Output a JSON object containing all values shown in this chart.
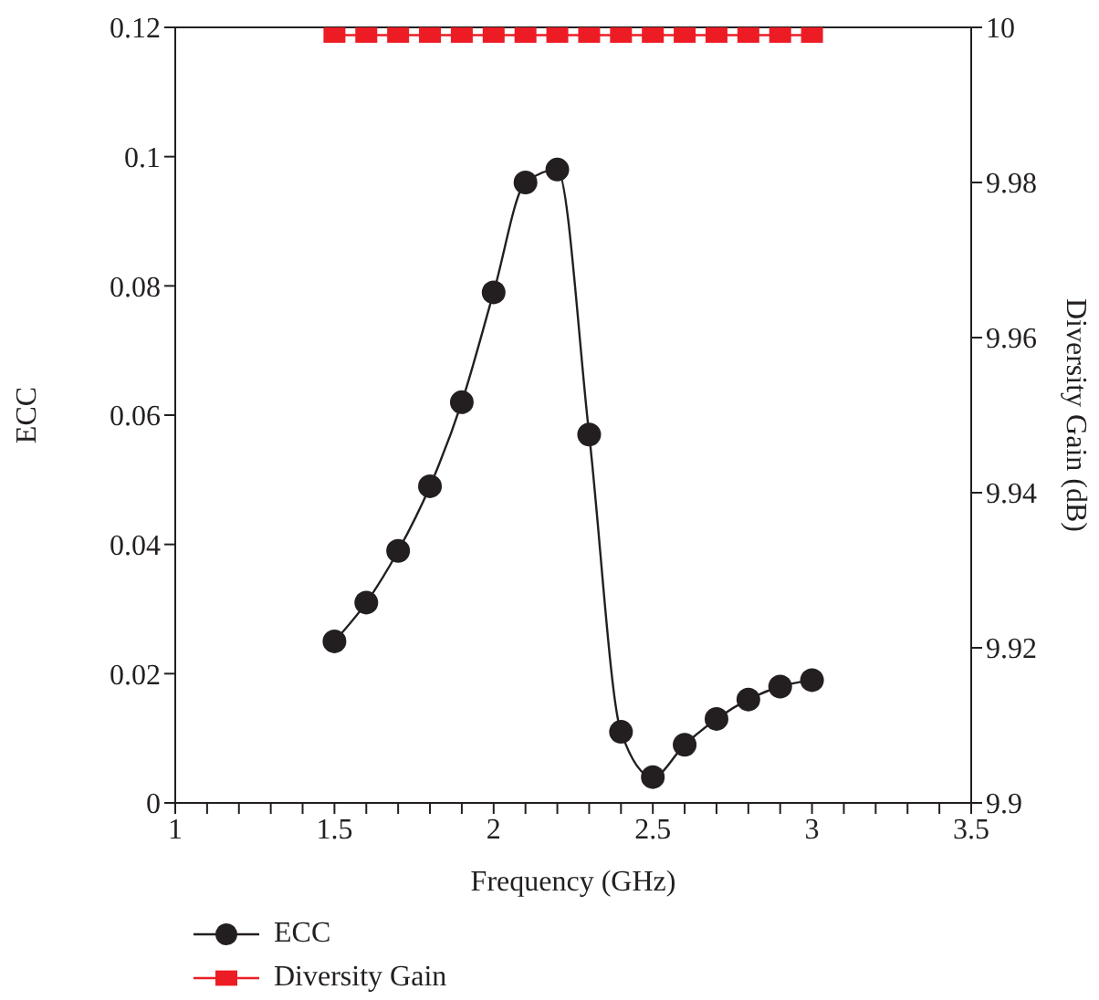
{
  "chart_data": {
    "type": "line",
    "xlabel": "Frequency (GHz)",
    "ylabel": "ECC",
    "y2label": "Diversity Gain (dB)",
    "x": [
      1.5,
      1.6,
      1.7,
      1.8,
      1.9,
      2.0,
      2.1,
      2.2,
      2.3,
      2.4,
      2.5,
      2.6,
      2.7,
      2.8,
      2.9,
      3.0
    ],
    "series": [
      {
        "name": "ECC",
        "color": "#231f20",
        "marker": "circle",
        "values": [
          0.025,
          0.031,
          0.039,
          0.049,
          0.062,
          0.079,
          0.096,
          0.098,
          0.057,
          0.011,
          0.004,
          0.009,
          0.013,
          0.016,
          0.018,
          0.019
        ]
      },
      {
        "name": "Diversity Gain",
        "color": "#ed1c24",
        "marker": "square",
        "axis": "y2",
        "values": [
          9.999,
          9.999,
          9.999,
          9.999,
          9.999,
          9.999,
          9.999,
          9.999,
          9.999,
          9.999,
          9.999,
          9.999,
          9.999,
          9.999,
          9.999,
          9.999
        ]
      }
    ],
    "xlim": [
      1,
      3.5
    ],
    "xticks": [
      1,
      {
        "value": 1.1,
        "label": null
      },
      {
        "value": 1.2,
        "label": null
      },
      {
        "value": 1.3,
        "label": null
      },
      {
        "value": 1.4,
        "label": null
      },
      1.5,
      {
        "value": 1.6,
        "label": null
      },
      {
        "value": 1.7,
        "label": null
      },
      {
        "value": 1.8,
        "label": null
      },
      {
        "value": 1.9,
        "label": null
      },
      2,
      {
        "value": 2.1,
        "label": null
      },
      {
        "value": 2.2,
        "label": null
      },
      {
        "value": 2.3,
        "label": null
      },
      {
        "value": 2.4,
        "label": null
      },
      2.5,
      {
        "value": 2.6,
        "label": null
      },
      {
        "value": 2.7,
        "label": null
      },
      {
        "value": 2.8,
        "label": null
      },
      {
        "value": 2.9,
        "label": null
      },
      3,
      {
        "value": 3.1,
        "label": null
      },
      {
        "value": 3.2,
        "label": null
      },
      {
        "value": 3.3,
        "label": null
      },
      {
        "value": 3.4,
        "label": null
      },
      3.5
    ],
    "ylim": [
      0,
      0.12
    ],
    "yticks": [
      0,
      0.02,
      0.04,
      0.06,
      0.08,
      0.1,
      0.12
    ],
    "y2lim": [
      9.9,
      10
    ],
    "y2ticks": [
      9.9,
      9.92,
      9.94,
      9.96,
      9.98,
      10
    ],
    "legend": "bottom left",
    "line_style": "solid"
  }
}
